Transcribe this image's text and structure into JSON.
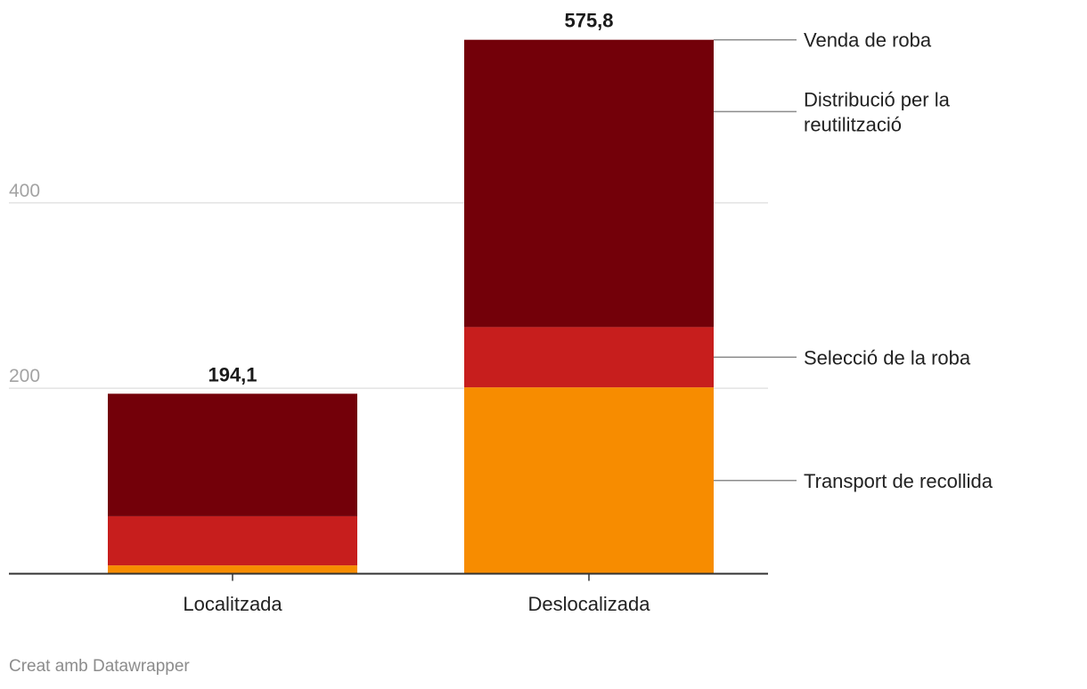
{
  "chart_data": {
    "type": "bar",
    "stacked": true,
    "categories": [
      "Localitzada",
      "Deslocalizada"
    ],
    "series": [
      {
        "name": "Transport de recollida",
        "color": "#f78c00",
        "values": [
          9,
          201
        ]
      },
      {
        "name": "Selecció de la roba",
        "color": "#c71e1d",
        "values": [
          53,
          65
        ]
      },
      {
        "name": "Distribució per la reutilització",
        "color": "#730009",
        "values": [
          132.1,
          309.8
        ]
      },
      {
        "name": "Venda de roba",
        "color": "#730009",
        "values": [
          0,
          0
        ]
      }
    ],
    "totals": [
      "194,1",
      "575,8"
    ],
    "y_ticks": [
      {
        "value": 200,
        "label": "200"
      },
      {
        "value": 400,
        "label": "400"
      }
    ],
    "ylim": [
      0,
      600
    ],
    "grid": true,
    "legend_position": "right",
    "title": "",
    "xlabel": "",
    "ylabel": ""
  },
  "footer": "Creat amb Datawrapper"
}
